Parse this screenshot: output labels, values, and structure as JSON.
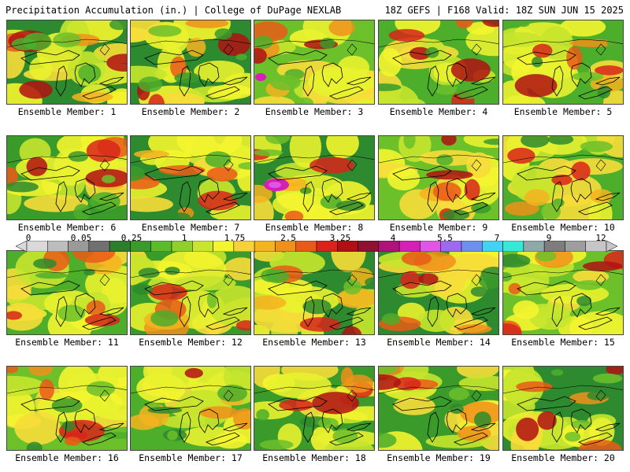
{
  "header": {
    "left": "Precipitation Accumulation (in.) | College of DuPage NEXLAB",
    "right": "18Z GEFS | F168 Valid: 18Z SUN JUN 15 2025"
  },
  "members": [
    {
      "label": "Ensemble Member: 1"
    },
    {
      "label": "Ensemble Member: 2"
    },
    {
      "label": "Ensemble Member: 3"
    },
    {
      "label": "Ensemble Member: 4"
    },
    {
      "label": "Ensemble Member: 5"
    },
    {
      "label": "Ensemble Member: 6"
    },
    {
      "label": "Ensemble Member: 7"
    },
    {
      "label": "Ensemble Member: 8"
    },
    {
      "label": "Ensemble Member: 9"
    },
    {
      "label": "Ensemble Member: 10"
    },
    {
      "label": "Ensemble Member: 11"
    },
    {
      "label": "Ensemble Member: 12"
    },
    {
      "label": "Ensemble Member: 13"
    },
    {
      "label": "Ensemble Member: 14"
    },
    {
      "label": "Ensemble Member: 15"
    },
    {
      "label": "Ensemble Member: 16"
    },
    {
      "label": "Ensemble Member: 17"
    },
    {
      "label": "Ensemble Member: 18"
    },
    {
      "label": "Ensemble Member: 19"
    },
    {
      "label": "Ensemble Member: 20"
    }
  ],
  "colorbar": {
    "tick_labels": [
      "0",
      "0.05",
      "0.25",
      "1",
      "1.75",
      "2.5",
      "3.25",
      "4",
      "5.5",
      "7",
      "9",
      "12"
    ],
    "colors": [
      "#d9d9d9",
      "#bdbdbd",
      "#9a9a9a",
      "#707070",
      "#2e7d2e",
      "#3a9a2a",
      "#5dbb2a",
      "#8fd12a",
      "#c7e62d",
      "#f4f52f",
      "#f7d13a",
      "#f5b31f",
      "#f0901a",
      "#ea5a17",
      "#d8241a",
      "#b01013",
      "#8f1030",
      "#b0127a",
      "#d61fb7",
      "#e054e6",
      "#9b6af0",
      "#6f8ff0",
      "#42d2f2",
      "#36e8d6",
      "#8fa9a9",
      "#7d7d7d",
      "#9e9e9e",
      "#c6c6c6"
    ]
  }
}
